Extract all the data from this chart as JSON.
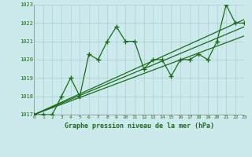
{
  "title": "Graphe pression niveau de la mer (hPa)",
  "bg_color": "#cceaec",
  "grid_color": "#aed4d8",
  "line_color": "#1a6b1a",
  "x_min": 0,
  "x_max": 23,
  "y_min": 1017,
  "y_max": 1023,
  "y_ticks": [
    1017,
    1018,
    1019,
    1020,
    1021,
    1022,
    1023
  ],
  "x_ticks": [
    0,
    1,
    2,
    3,
    4,
    5,
    6,
    7,
    8,
    9,
    10,
    11,
    12,
    13,
    14,
    15,
    16,
    17,
    18,
    19,
    20,
    21,
    22,
    23
  ],
  "series1_x": [
    0,
    1,
    2,
    3,
    4,
    5,
    6,
    7,
    8,
    9,
    10,
    11,
    12,
    13,
    14,
    15,
    16,
    17,
    18,
    19,
    20,
    21,
    22,
    23
  ],
  "series1_y": [
    1017.0,
    1017.0,
    1017.0,
    1018.0,
    1019.0,
    1018.0,
    1020.3,
    1020.0,
    1021.0,
    1021.8,
    1021.0,
    1021.0,
    1019.5,
    1020.0,
    1020.0,
    1019.1,
    1020.0,
    1020.0,
    1020.3,
    1020.0,
    1021.0,
    1023.0,
    1022.0,
    1022.0
  ],
  "line2_x": [
    0,
    23
  ],
  "line2_y": [
    1017.0,
    1021.3
  ],
  "line3_x": [
    0,
    23
  ],
  "line3_y": [
    1017.0,
    1021.8
  ],
  "line4_x": [
    0,
    23
  ],
  "line4_y": [
    1017.0,
    1022.2
  ]
}
